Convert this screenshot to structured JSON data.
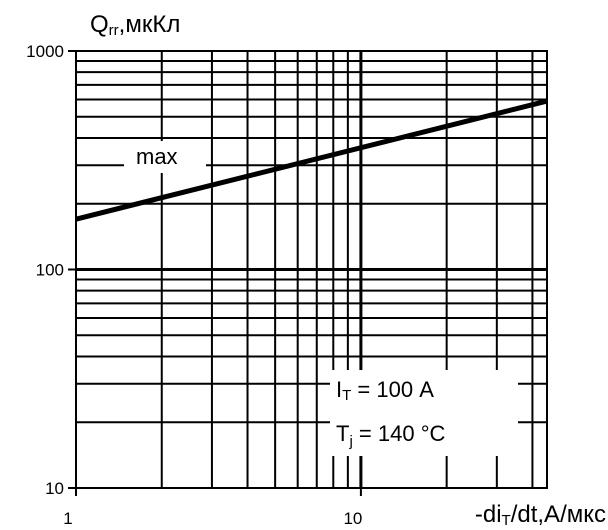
{
  "chart_data": {
    "type": "line",
    "title": "",
    "ylabel": {
      "main": "Q",
      "sub": "rr",
      "rest": ",мкКл"
    },
    "xlabel": {
      "pre": "-di",
      "sub": "T",
      "rest": "/dt,А/мкс"
    },
    "x_scale": "log",
    "y_scale": "log",
    "xlim": [
      1,
      45
    ],
    "ylim": [
      10,
      1000
    ],
    "x_ticks": [
      "1",
      "10"
    ],
    "y_ticks": [
      "1000",
      "100",
      "10"
    ],
    "grid": true,
    "series": [
      {
        "name": "max",
        "x": [
          1,
          45
        ],
        "y": [
          170,
          590
        ]
      }
    ],
    "annotations": {
      "series_label": "max",
      "condition_1": {
        "pre": "I",
        "sub": "T",
        "rest": " = 100 А"
      },
      "condition_2": {
        "pre": "T",
        "sub": "j",
        "rest": " = 140 °C"
      }
    }
  }
}
